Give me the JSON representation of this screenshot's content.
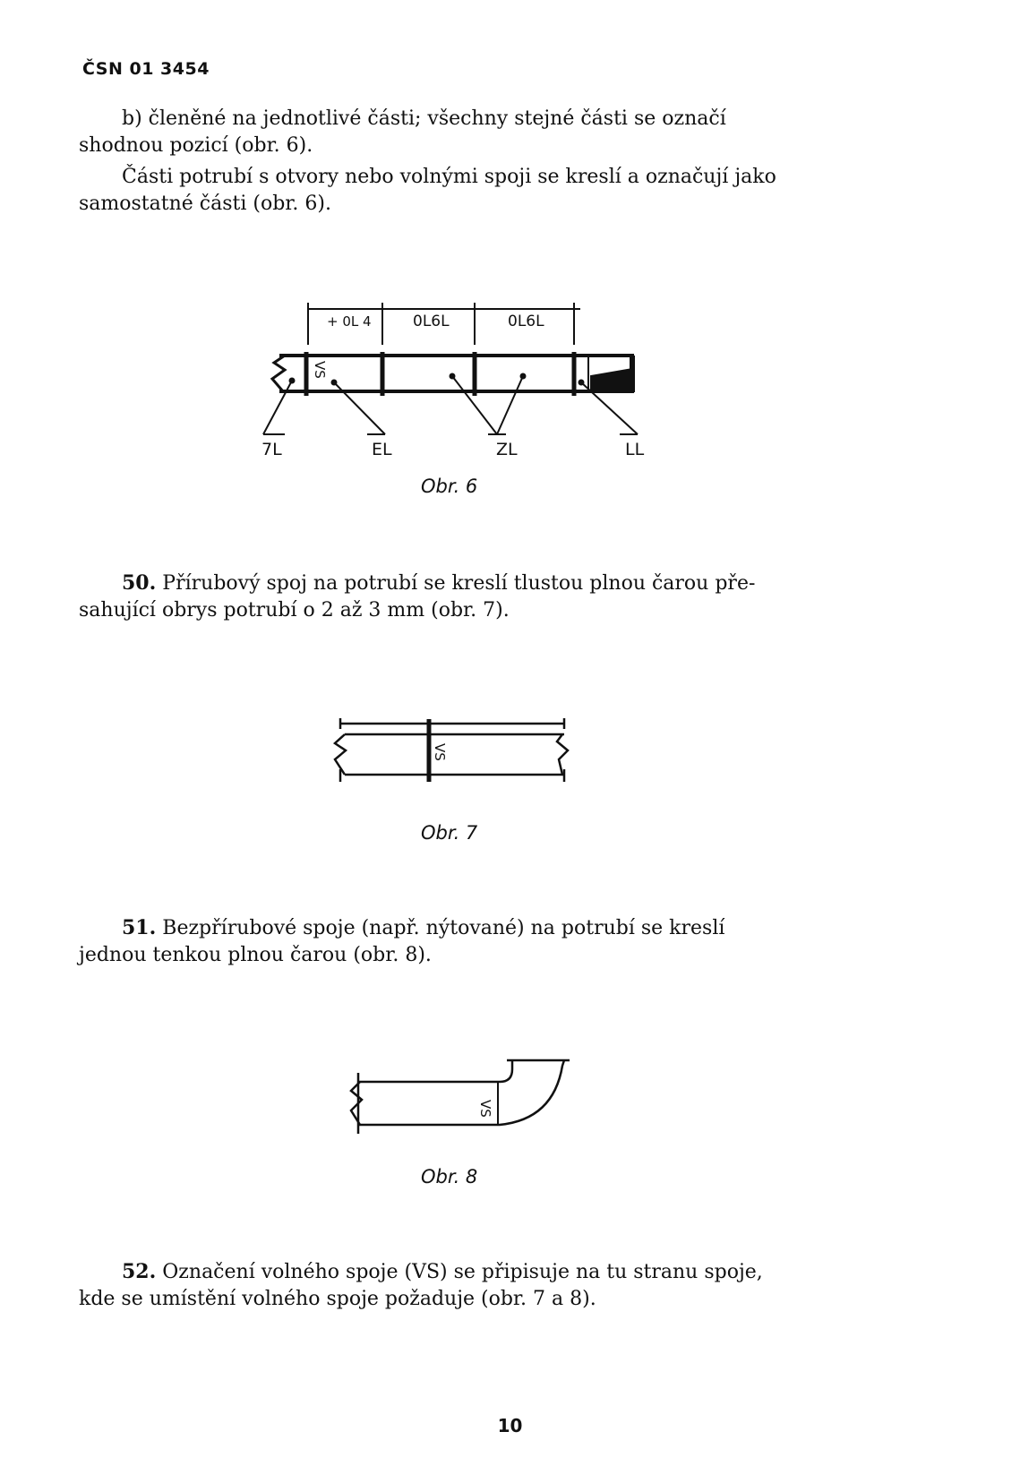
{
  "header": {
    "standard": "ČSN 01 3454"
  },
  "paragraphs": {
    "p1_line1": "b) členěné na jednotlivé části; všechny stejné části se označí",
    "p1_line2": "shodnou pozicí (obr. 6).",
    "p2_line1": "Části potrubí s otvory nebo volnými spoji se kreslí a označují jako",
    "p2_line2": "samostatné části (obr. 6).",
    "p50_num": "50.",
    "p50_line1": " Přírubový spoj na potrubí se kreslí tlustou plnou čarou pře-",
    "p50_line2": "sahující obrys potrubí o 2 až 3 mm (obr. 7).",
    "p51_num": "51.",
    "p51_line1": " Bezpřírubové spoje (např. nýtované) na potrubí se kreslí",
    "p51_line2": "jednou tenkou plnou čarou (obr. 8).",
    "p52_num": "52.",
    "p52_line1": " Označení volného spoje (VS) se připisuje na tu stranu spoje,",
    "p52_line2": "kde se umístění volného spoje požaduje (obr. 7 a 8)."
  },
  "figure6": {
    "caption": "Obr. 6",
    "dim_1": "+ 0L 4",
    "dim_2": "0L6L",
    "dim_3": "0L6L",
    "vs": "VS",
    "pos_14": "7L",
    "pos_13": "EL",
    "pos_12": "ZL",
    "pos_11": "LL"
  },
  "figure7": {
    "caption": "Obr. 7",
    "vs": "VS"
  },
  "figure8": {
    "caption": "Obr. 8",
    "vs": "VS"
  },
  "page_number": "10"
}
